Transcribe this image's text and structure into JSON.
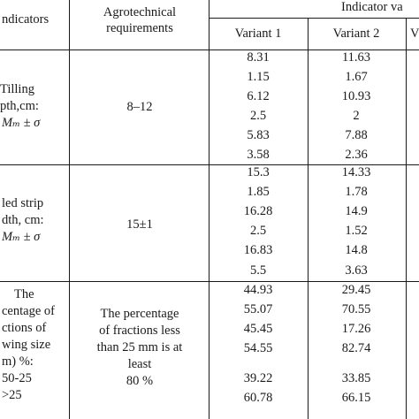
{
  "header": {
    "col_indicators": "ndicators",
    "col_agro_line1": "Agrotechnical",
    "col_agro_line2": "requirements",
    "col_values": "Indicator va",
    "col_variant1": "Variant 1",
    "col_variant2": "Variant 2",
    "col_variant3_partial": "V"
  },
  "rows": [
    {
      "label_lines": [
        "Tilling",
        "pth,cm:",
        "Mₘ ± σ"
      ],
      "requirement_lines": [
        "8–12"
      ],
      "variant1": [
        "8.31",
        "1.15",
        "6.12",
        "2.5",
        "5.83",
        "3.58"
      ],
      "variant2": [
        "11.63",
        "1.67",
        "10.93",
        "2",
        "7.88",
        "2.36"
      ]
    },
    {
      "label_lines": [
        "led strip",
        "dth, cm:",
        "Mₘ ± σ"
      ],
      "requirement_lines": [
        "15±1"
      ],
      "variant1": [
        "15.3",
        "1.85",
        "16.28",
        "2.5",
        "16.83",
        "5.5"
      ],
      "variant2": [
        "14.33",
        "1.78",
        "14.9",
        "1.52",
        "14.8",
        "3.63"
      ]
    },
    {
      "label_lines": [
        "The",
        "centage of",
        "ctions of",
        "wing size",
        "m) %:",
        "50-25",
        ">25"
      ],
      "requirement_lines": [
        "The percentage",
        "of fractions less",
        "than 25 mm is at",
        "least",
        "80 %"
      ],
      "variant1": [
        "44.93",
        "55.07",
        "45.45",
        "54.55",
        "39.22",
        "60.78"
      ],
      "variant2": [
        "29.45",
        "70.55",
        "17.26",
        "82.74",
        "33.85",
        "66.15"
      ]
    }
  ]
}
